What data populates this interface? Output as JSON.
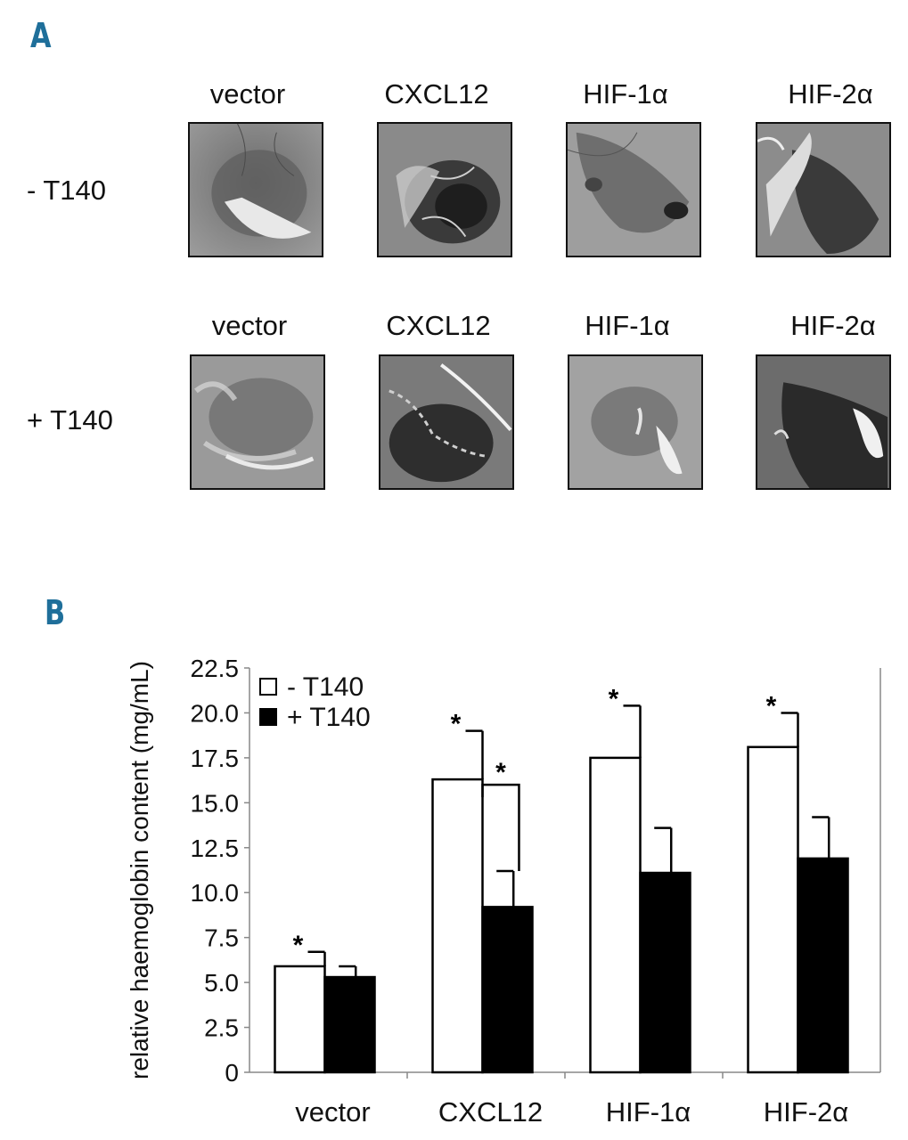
{
  "panel_a": {
    "letter": "A",
    "columns": [
      "vector",
      "CXCL12",
      "HIF-1α",
      "HIF-2α"
    ],
    "rows": [
      "- T140",
      "+ T140"
    ]
  },
  "panel_b": {
    "letter": "B"
  },
  "chart_data": {
    "type": "bar",
    "categories": [
      "vector",
      "CXCL12",
      "HIF-1α",
      "HIF-2α"
    ],
    "series": [
      {
        "name": "- T140",
        "color": "#ffffff",
        "values": [
          5.9,
          16.3,
          17.5,
          18.1
        ],
        "errors": [
          0.8,
          2.7,
          2.9,
          1.9
        ]
      },
      {
        "name": "+ T140",
        "color": "#000000",
        "values": [
          5.3,
          9.2,
          11.1,
          11.9
        ],
        "errors": [
          0.6,
          2.0,
          2.5,
          2.3
        ]
      }
    ],
    "ylabel": "relative haemoglobin content (mg/mL)",
    "ylim": [
      0,
      22.5
    ],
    "yticks": [
      "0",
      "2.5",
      "5.0",
      "7.5",
      "10.0",
      "12.5",
      "15.0",
      "17.5",
      "20.0",
      "22.5"
    ],
    "significance": [
      "*",
      "*",
      "*",
      "*"
    ],
    "legend_position": "top-left"
  }
}
